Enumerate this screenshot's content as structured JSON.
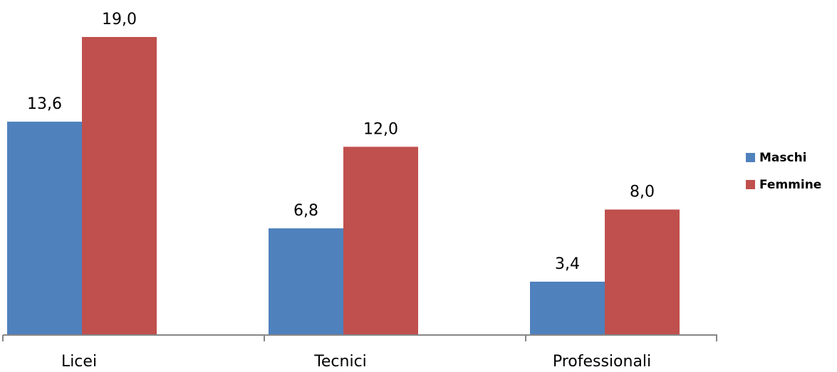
{
  "chart_data": {
    "type": "bar",
    "categories": [
      "Licei",
      "Tecnici",
      "Professionali"
    ],
    "series": [
      {
        "name": "Maschi",
        "values": [
          13.6,
          6.8,
          3.4
        ],
        "labels": [
          "13,6",
          "6,8",
          "3,4"
        ],
        "color": "#4F81BD"
      },
      {
        "name": "Femmine",
        "values": [
          19.0,
          12.0,
          8.0
        ],
        "labels": [
          "19,0",
          "12,0",
          "8,0"
        ],
        "color": "#C0504D"
      }
    ],
    "title": "",
    "xlabel": "",
    "ylabel": "",
    "ylim": [
      0,
      19.0
    ],
    "grid": false,
    "legend": "right"
  }
}
